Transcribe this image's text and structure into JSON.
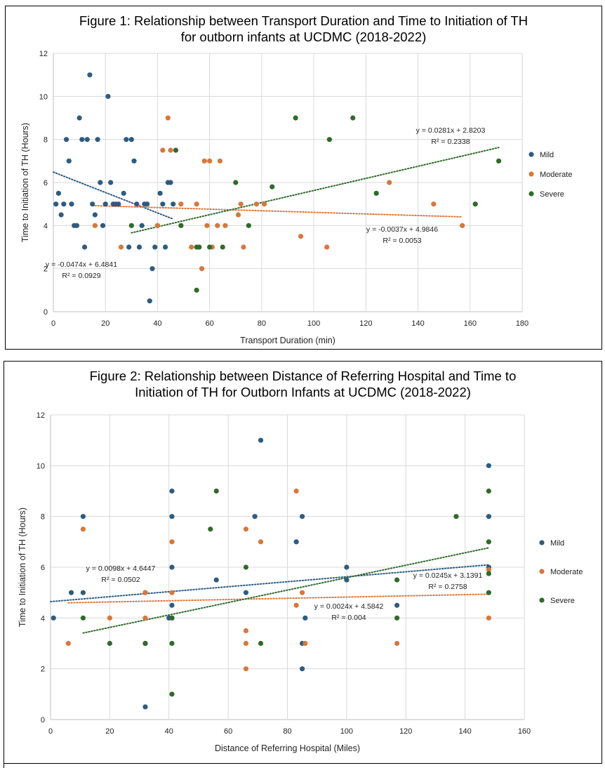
{
  "chart_data": [
    {
      "type": "scatter",
      "title_lines": [
        "Figure 1: Relationship between Transport Duration and Time to Initiation of TH",
        "for outborn infants at UCDMC (2018-2022)"
      ],
      "xlabel": "Transport Duration (min)",
      "ylabel": "Time to Initiation of TH (Hours)",
      "xlim": [
        0,
        180
      ],
      "ylim": [
        0,
        12
      ],
      "x_ticks": [
        0,
        20,
        40,
        60,
        80,
        100,
        120,
        140,
        160,
        180
      ],
      "y_ticks": [
        0,
        2,
        4,
        6,
        8,
        10,
        12
      ],
      "grid": true,
      "legend_position": "right",
      "series": [
        {
          "name": "Mild",
          "color": "#2E5C80",
          "points": [
            [
              1,
              5
            ],
            [
              2,
              5.5
            ],
            [
              3,
              4.5
            ],
            [
              4,
              5
            ],
            [
              5,
              8
            ],
            [
              6,
              7
            ],
            [
              7,
              5
            ],
            [
              8,
              4
            ],
            [
              9,
              4
            ],
            [
              10,
              9
            ],
            [
              11,
              8
            ],
            [
              12,
              3
            ],
            [
              13,
              8
            ],
            [
              14,
              11
            ],
            [
              15,
              5
            ],
            [
              16,
              4.5
            ],
            [
              17,
              8
            ],
            [
              18,
              6
            ],
            [
              19,
              4
            ],
            [
              20,
              5
            ],
            [
              21,
              10
            ],
            [
              22,
              6
            ],
            [
              23,
              5
            ],
            [
              24,
              5
            ],
            [
              25,
              5
            ],
            [
              27,
              5.5
            ],
            [
              28,
              8
            ],
            [
              29,
              3
            ],
            [
              30,
              8
            ],
            [
              31,
              7
            ],
            [
              32,
              5
            ],
            [
              33,
              3
            ],
            [
              34,
              4
            ],
            [
              35,
              5
            ],
            [
              36,
              5
            ],
            [
              37,
              0.5
            ],
            [
              38,
              2
            ],
            [
              39,
              3
            ],
            [
              40,
              4
            ],
            [
              41,
              5.5
            ],
            [
              42,
              5
            ],
            [
              43,
              3
            ],
            [
              44,
              6
            ],
            [
              45,
              6
            ],
            [
              46,
              5
            ]
          ]
        },
        {
          "name": "Moderate",
          "color": "#D9773A",
          "points": [
            [
              16,
              4
            ],
            [
              26,
              3
            ],
            [
              40,
              4
            ],
            [
              42,
              7.5
            ],
            [
              44,
              9
            ],
            [
              45,
              7.5
            ],
            [
              49,
              5
            ],
            [
              53,
              3
            ],
            [
              55,
              5
            ],
            [
              56,
              3
            ],
            [
              57,
              2
            ],
            [
              58,
              7
            ],
            [
              59,
              4
            ],
            [
              60,
              7
            ],
            [
              61,
              3
            ],
            [
              63,
              4
            ],
            [
              64,
              7
            ],
            [
              66,
              4
            ],
            [
              71,
              4.5
            ],
            [
              72,
              5
            ],
            [
              73,
              3
            ],
            [
              78,
              5
            ],
            [
              81,
              5
            ],
            [
              95,
              3.5
            ],
            [
              105,
              3
            ],
            [
              129,
              6
            ],
            [
              146,
              5
            ],
            [
              157,
              4
            ]
          ]
        },
        {
          "name": "Severe",
          "color": "#2F6B2A",
          "points": [
            [
              30,
              4
            ],
            [
              47,
              7.5
            ],
            [
              49,
              4
            ],
            [
              55,
              1
            ],
            [
              55,
              3
            ],
            [
              56,
              3
            ],
            [
              60,
              3
            ],
            [
              65,
              3
            ],
            [
              70,
              6
            ],
            [
              75,
              4
            ],
            [
              84,
              5.8
            ],
            [
              93,
              9
            ],
            [
              106,
              8
            ],
            [
              115,
              9
            ],
            [
              124,
              5.5
            ],
            [
              162,
              5
            ],
            [
              171,
              7
            ]
          ]
        }
      ],
      "trendlines": [
        {
          "series": "Mild",
          "slope": -0.0474,
          "intercept": 6.4841,
          "x_range": [
            0,
            46
          ],
          "equation": "y = -0.0474x + 6.4841",
          "r2": "R² = 0.0929"
        },
        {
          "series": "Moderate",
          "slope": -0.0037,
          "intercept": 4.9846,
          "x_range": [
            16,
            157
          ],
          "equation": "y = -0.0037x + 4.9846",
          "r2": "R² = 0.0053"
        },
        {
          "series": "Severe",
          "slope": 0.0281,
          "intercept": 2.8203,
          "x_range": [
            30,
            171
          ],
          "equation": "y = 0.0281x + 2.8203",
          "r2": "R² = 0.2338"
        }
      ]
    },
    {
      "type": "scatter",
      "title_lines": [
        "Figure 2: Relationship between Distance of Referring Hospital and Time to",
        "Initiation of TH for Outborn Infants at UCDMC (2018-2022)"
      ],
      "xlabel": "Distance of Referring Hospital (Miles)",
      "ylabel": "Time to Initiation of TH (Hours)",
      "xlim": [
        0,
        160
      ],
      "ylim": [
        0,
        12
      ],
      "x_ticks": [
        0,
        20,
        40,
        60,
        80,
        100,
        120,
        140,
        160
      ],
      "y_ticks": [
        0,
        2,
        4,
        6,
        8,
        10,
        12
      ],
      "grid": true,
      "legend_position": "right",
      "series": [
        {
          "name": "Mild",
          "color": "#2E5C80",
          "points": [
            [
              1,
              4
            ],
            [
              7,
              5
            ],
            [
              11,
              8
            ],
            [
              11,
              5
            ],
            [
              32,
              3
            ],
            [
              32,
              5
            ],
            [
              32,
              0.5
            ],
            [
              32,
              3
            ],
            [
              40,
              4
            ],
            [
              41,
              9
            ],
            [
              41,
              8
            ],
            [
              41,
              6
            ],
            [
              41,
              4.5
            ],
            [
              41,
              4
            ],
            [
              56,
              5.5
            ],
            [
              66,
              5
            ],
            [
              69,
              8
            ],
            [
              71,
              11
            ],
            [
              83,
              7
            ],
            [
              85,
              8
            ],
            [
              85,
              3
            ],
            [
              85,
              2
            ],
            [
              86,
              4
            ],
            [
              100,
              6
            ],
            [
              100,
              5.5
            ],
            [
              117,
              4.5
            ],
            [
              148,
              10
            ],
            [
              148,
              8
            ],
            [
              148,
              6
            ]
          ]
        },
        {
          "name": "Moderate",
          "color": "#D9773A",
          "points": [
            [
              6,
              3
            ],
            [
              11,
              7.5
            ],
            [
              20,
              4
            ],
            [
              32,
              5
            ],
            [
              32,
              4
            ],
            [
              41,
              7
            ],
            [
              41,
              5
            ],
            [
              66,
              7.5
            ],
            [
              66,
              3.5
            ],
            [
              66,
              3
            ],
            [
              66,
              2
            ],
            [
              71,
              7
            ],
            [
              83,
              9
            ],
            [
              83,
              4.5
            ],
            [
              85,
              5
            ],
            [
              86,
              3
            ],
            [
              117,
              3
            ],
            [
              148,
              5.9
            ],
            [
              148,
              4
            ]
          ]
        },
        {
          "name": "Severe",
          "color": "#2F6B2A",
          "points": [
            [
              11,
              4
            ],
            [
              20,
              3
            ],
            [
              32,
              3
            ],
            [
              41,
              3
            ],
            [
              41,
              4
            ],
            [
              41,
              1
            ],
            [
              54,
              7.5
            ],
            [
              56,
              9
            ],
            [
              66,
              6
            ],
            [
              71,
              3
            ],
            [
              117,
              5.5
            ],
            [
              117,
              4
            ],
            [
              137,
              8
            ],
            [
              148,
              9
            ],
            [
              148,
              7
            ],
            [
              148,
              5.75
            ],
            [
              148,
              5
            ]
          ]
        }
      ],
      "trendlines": [
        {
          "series": "Mild",
          "slope": 0.0098,
          "intercept": 4.6447,
          "x_range": [
            0,
            148
          ],
          "equation": "y = 0.0098x + 4.6447",
          "r2": "R² = 0.0502"
        },
        {
          "series": "Moderate",
          "slope": 0.0024,
          "intercept": 4.5842,
          "x_range": [
            6,
            148
          ],
          "equation": "y = 0.0024x + 4.5842",
          "r2": "R² = 0.004"
        },
        {
          "series": "Severe",
          "slope": 0.0245,
          "intercept": 3.1391,
          "x_range": [
            11,
            148
          ],
          "equation": "y = 0.0245x + 3.1391",
          "r2": "R² = 0.2758"
        }
      ]
    }
  ]
}
